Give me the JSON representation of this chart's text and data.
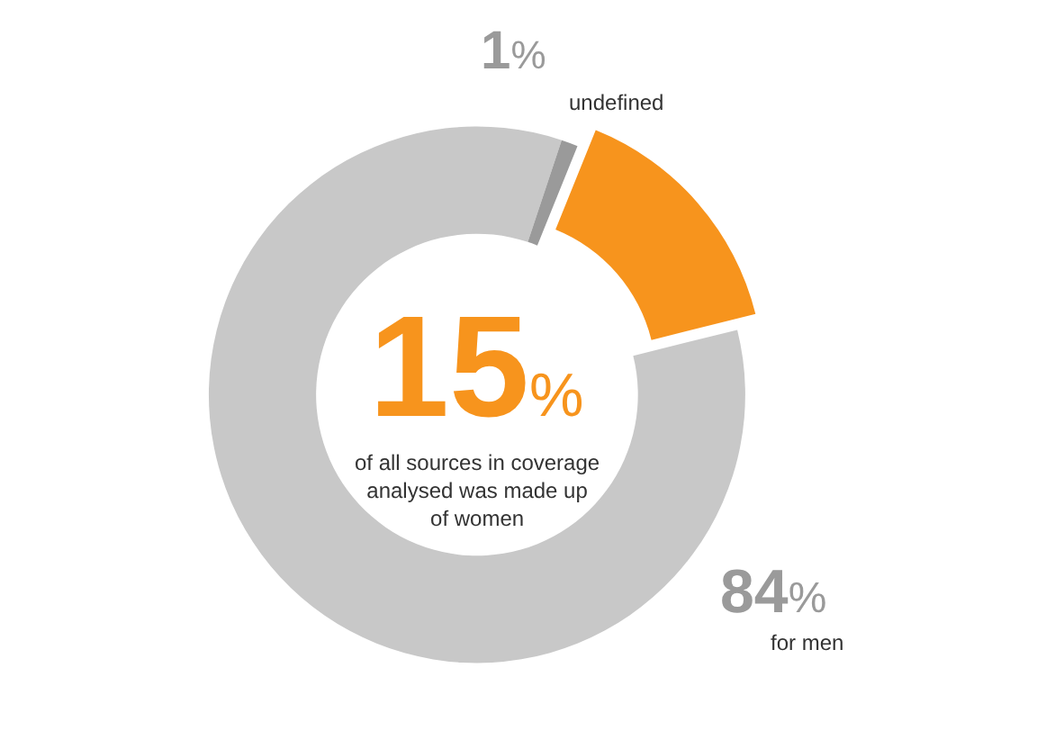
{
  "chart_data": {
    "type": "donut",
    "categories": [
      null,
      "for men",
      "undefined"
    ],
    "annotations": [
      "15%",
      "of all sources in coverage analysed was made up of women"
    ],
    "values": [
      15,
      84,
      1
    ],
    "colors": [
      "#f7941d",
      "#c8c8c8",
      "#9a9a9a"
    ],
    "value_labels": [
      null,
      "84%",
      "1%"
    ]
  }
}
